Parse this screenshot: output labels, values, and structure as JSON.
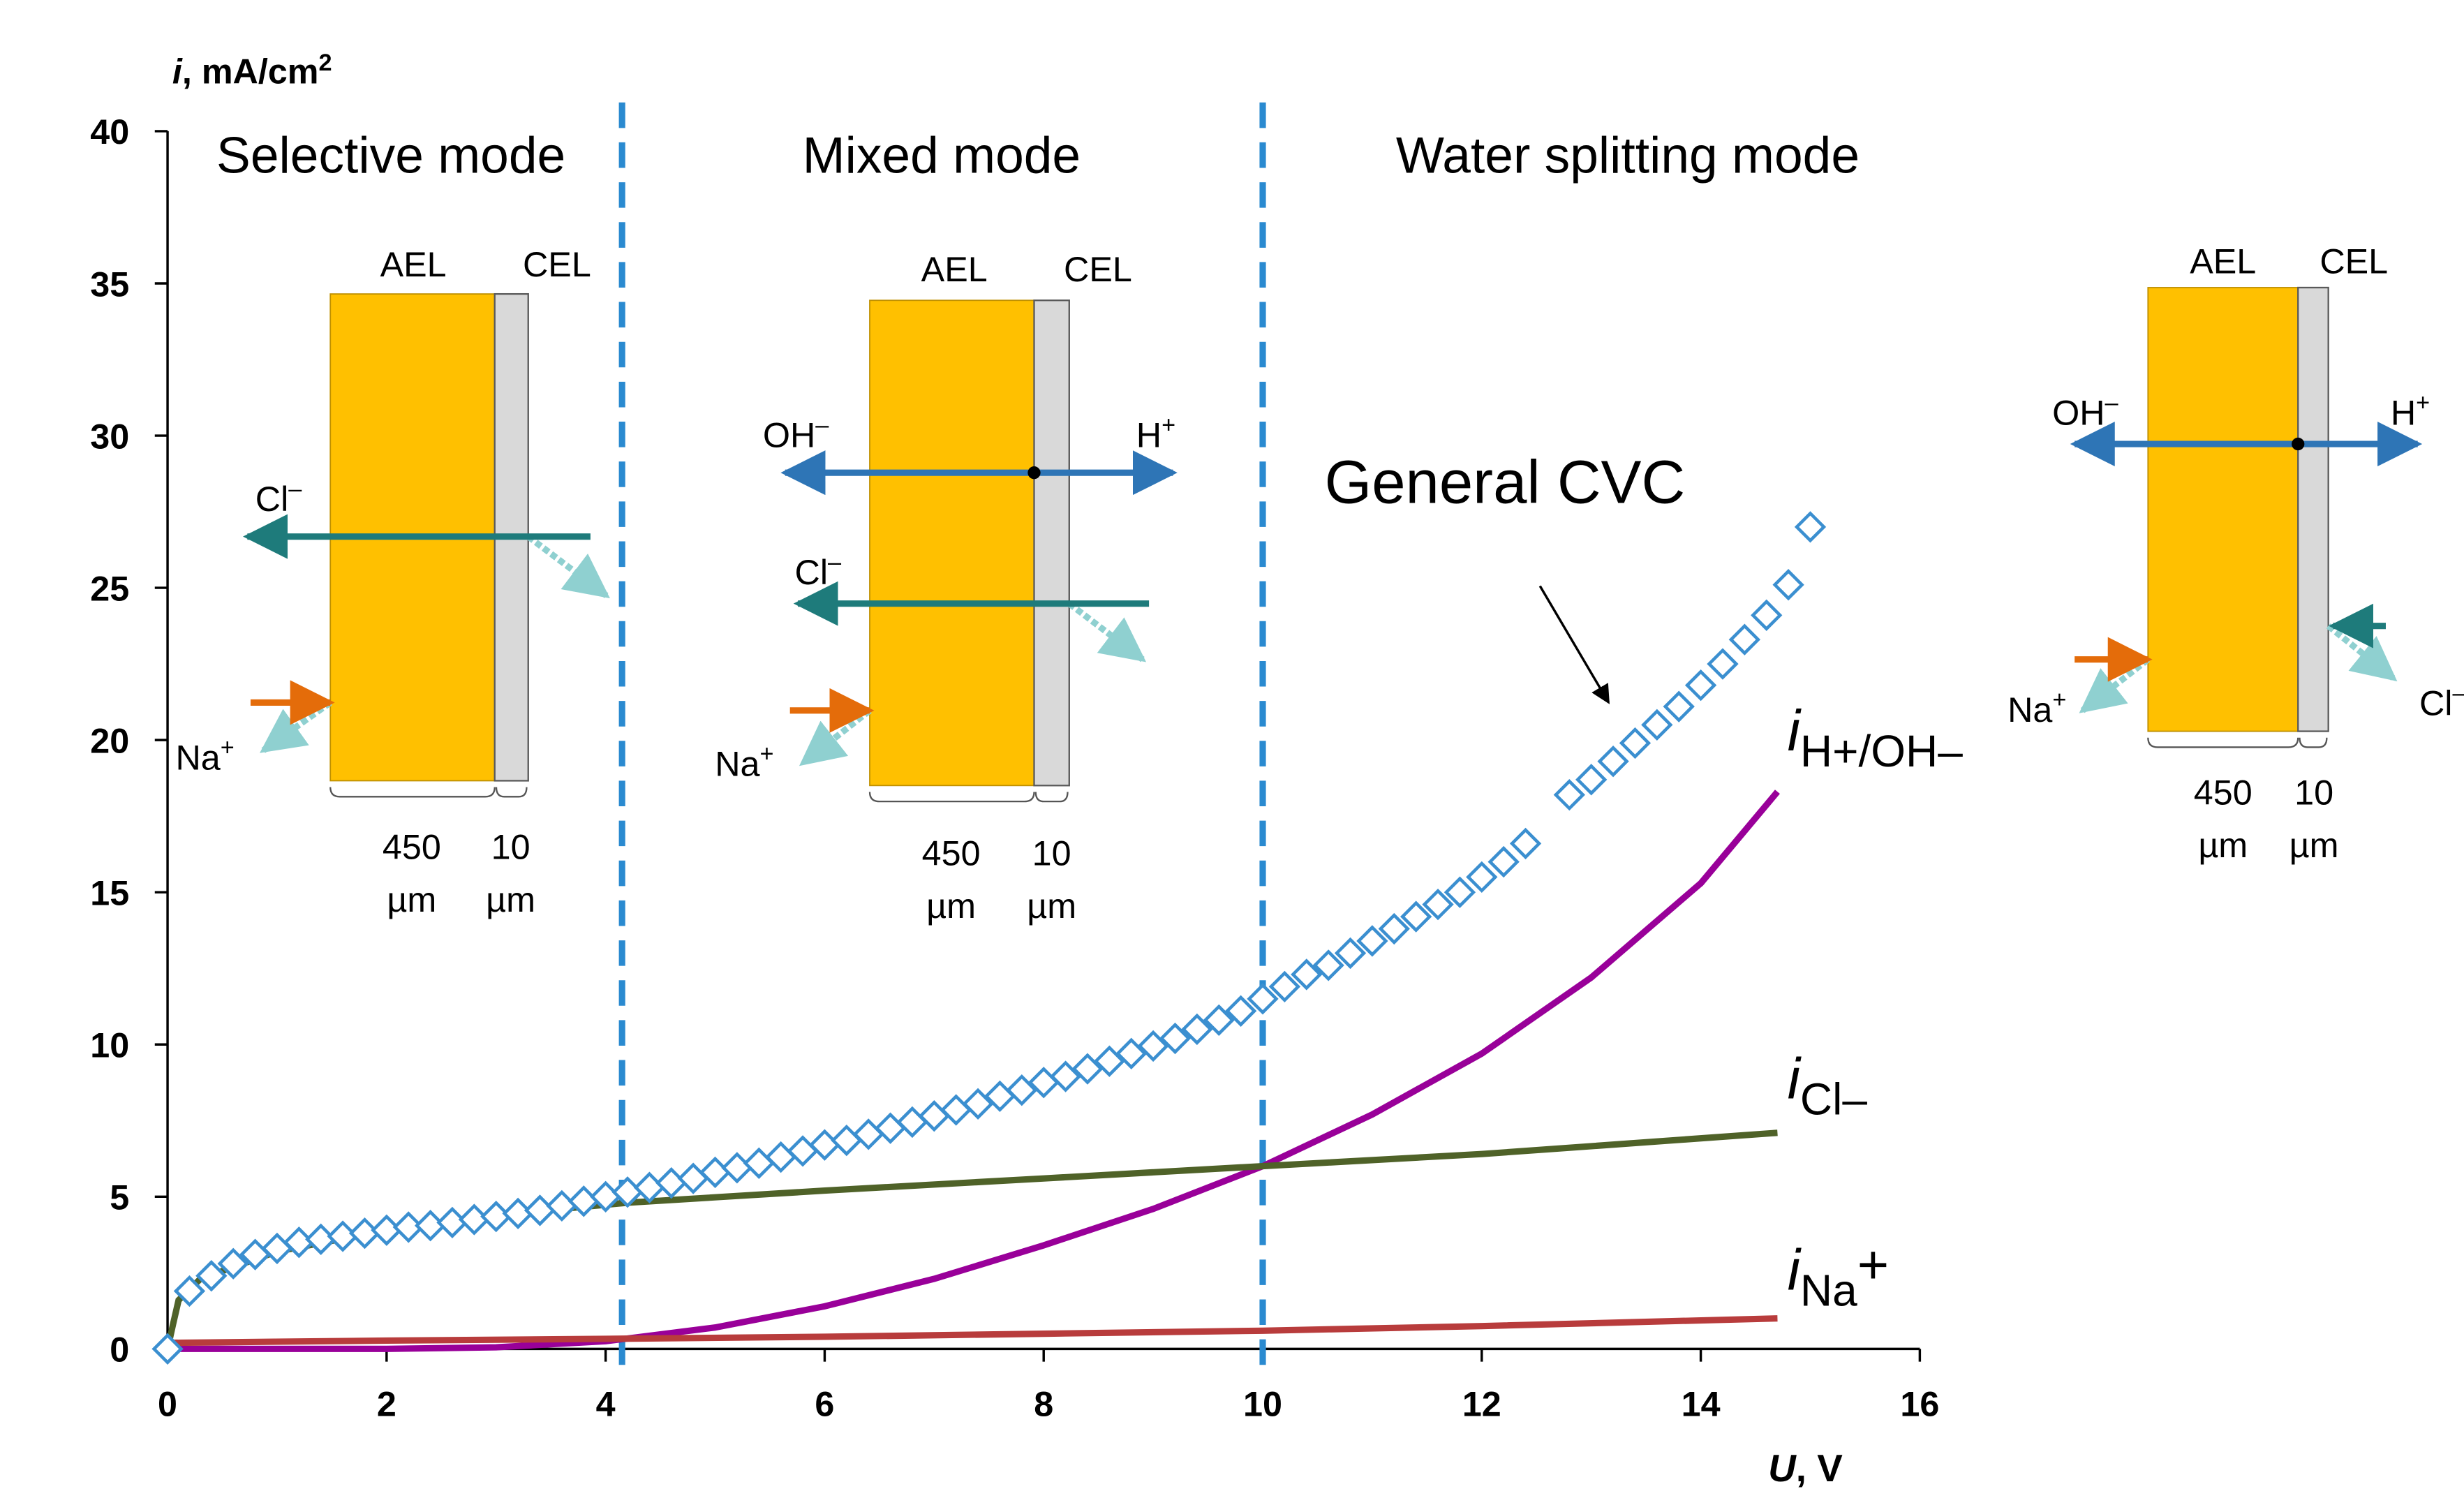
{
  "chart_data": {
    "type": "line",
    "y_label": {
      "main": "i",
      "rest": ", mA/cm",
      "sup": "2"
    },
    "x_label": {
      "main": "U",
      "rest": ", V"
    },
    "xlim": [
      0,
      16
    ],
    "xticks": [
      0,
      2,
      4,
      6,
      8,
      10,
      12,
      14,
      16
    ],
    "ylim": [
      0,
      40
    ],
    "yticks": [
      0,
      5,
      10,
      15,
      20,
      25,
      30,
      35,
      40
    ],
    "modes": [
      "Selective mode",
      "Mixed mode",
      "Water splitting mode"
    ],
    "mode_boundaries": [
      4.15,
      10
    ],
    "boundary_color": "#2a8ad0",
    "annotation": "General CVC",
    "markers": {
      "color": "#3b8fd0",
      "x": [
        0,
        0.2,
        0.4,
        0.6,
        0.8,
        1.0,
        1.2,
        1.4,
        1.6,
        1.8,
        2.0,
        2.2,
        2.4,
        2.6,
        2.8,
        3.0,
        3.2,
        3.4,
        3.6,
        3.8,
        4.0,
        4.2,
        4.4,
        4.6,
        4.8,
        5.0,
        5.2,
        5.4,
        5.6,
        5.8,
        6.0,
        6.2,
        6.4,
        6.6,
        6.8,
        7.0,
        7.2,
        7.4,
        7.6,
        7.8,
        8.0,
        8.2,
        8.4,
        8.6,
        8.8,
        9.0,
        9.2,
        9.4,
        9.6,
        9.8,
        10.0,
        10.2,
        10.4,
        10.6,
        10.8,
        11.0,
        11.2,
        11.4,
        11.6,
        11.8,
        12.0,
        12.2,
        12.4,
        12.8,
        13.0,
        13.2,
        13.4,
        13.6,
        13.8,
        14.0,
        14.2,
        14.4,
        14.6,
        14.8,
        15.0
      ],
      "values": [
        0,
        1.9,
        2.4,
        2.8,
        3.1,
        3.3,
        3.5,
        3.6,
        3.7,
        3.8,
        3.9,
        4.0,
        4.05,
        4.15,
        4.25,
        4.35,
        4.45,
        4.55,
        4.7,
        4.85,
        5.0,
        5.15,
        5.3,
        5.45,
        5.6,
        5.8,
        5.95,
        6.1,
        6.3,
        6.5,
        6.7,
        6.85,
        7.05,
        7.25,
        7.45,
        7.65,
        7.85,
        8.05,
        8.3,
        8.5,
        8.75,
        8.95,
        9.2,
        9.45,
        9.7,
        9.95,
        10.2,
        10.5,
        10.8,
        11.1,
        11.5,
        11.9,
        12.3,
        12.6,
        13.0,
        13.4,
        13.8,
        14.2,
        14.6,
        15.0,
        15.5,
        16.0,
        16.6,
        18.2,
        18.7,
        19.3,
        19.9,
        20.5,
        21.1,
        21.8,
        22.5,
        23.3,
        24.1,
        25.1,
        27.0
      ]
    },
    "series": [
      {
        "label_main": "i",
        "label_sub": "H+/OH–",
        "color": "#990099",
        "x": [
          0,
          1,
          2,
          3,
          4,
          5,
          6,
          7,
          8,
          9,
          10,
          11,
          12,
          13,
          14,
          14.7
        ],
        "values": [
          0,
          0,
          0,
          0.05,
          0.25,
          0.7,
          1.4,
          2.3,
          3.4,
          4.6,
          6.0,
          7.7,
          9.7,
          12.2,
          15.3,
          18.3
        ]
      },
      {
        "label_main": "i",
        "label_sub": "Cl–",
        "color": "#4f6228",
        "x": [
          0,
          0.05,
          0.1,
          0.3,
          1,
          2,
          3,
          4.2,
          6,
          8,
          10,
          12,
          14.7
        ],
        "values": [
          0,
          0.8,
          1.6,
          2.3,
          3.2,
          3.9,
          4.4,
          4.8,
          5.2,
          5.6,
          6.0,
          6.4,
          7.1
        ]
      },
      {
        "label_main": "i",
        "label_sub": "Na",
        "label_sup": "+",
        "color": "#b83c3c",
        "x": [
          0,
          2,
          4,
          6,
          8,
          10,
          12,
          14.7
        ],
        "values": [
          0.2,
          0.27,
          0.33,
          0.4,
          0.5,
          0.6,
          0.75,
          1.0
        ]
      }
    ],
    "insets": [
      {
        "layers": [
          "AEL",
          "CEL"
        ],
        "thickness": [
          "450",
          "10"
        ],
        "unit": "µm",
        "ions": [
          {
            "base": "Cl",
            "charge": "–"
          },
          {
            "base": "Na",
            "charge": "+"
          }
        ]
      },
      {
        "layers": [
          "AEL",
          "CEL"
        ],
        "thickness": [
          "450",
          "10"
        ],
        "unit": "µm",
        "ions": [
          {
            "base": "OH",
            "charge": "–"
          },
          {
            "base": "H",
            "charge": "+"
          },
          {
            "base": "Cl",
            "charge": "–"
          },
          {
            "base": "Na",
            "charge": "+"
          }
        ]
      },
      {
        "layers": [
          "AEL",
          "CEL"
        ],
        "thickness": [
          "450",
          "10"
        ],
        "unit": "µm",
        "ions": [
          {
            "base": "OH",
            "charge": "–"
          },
          {
            "base": "H",
            "charge": "+"
          },
          {
            "base": "Na",
            "charge": "+"
          },
          {
            "base": "Cl",
            "charge": "–"
          }
        ]
      }
    ]
  }
}
